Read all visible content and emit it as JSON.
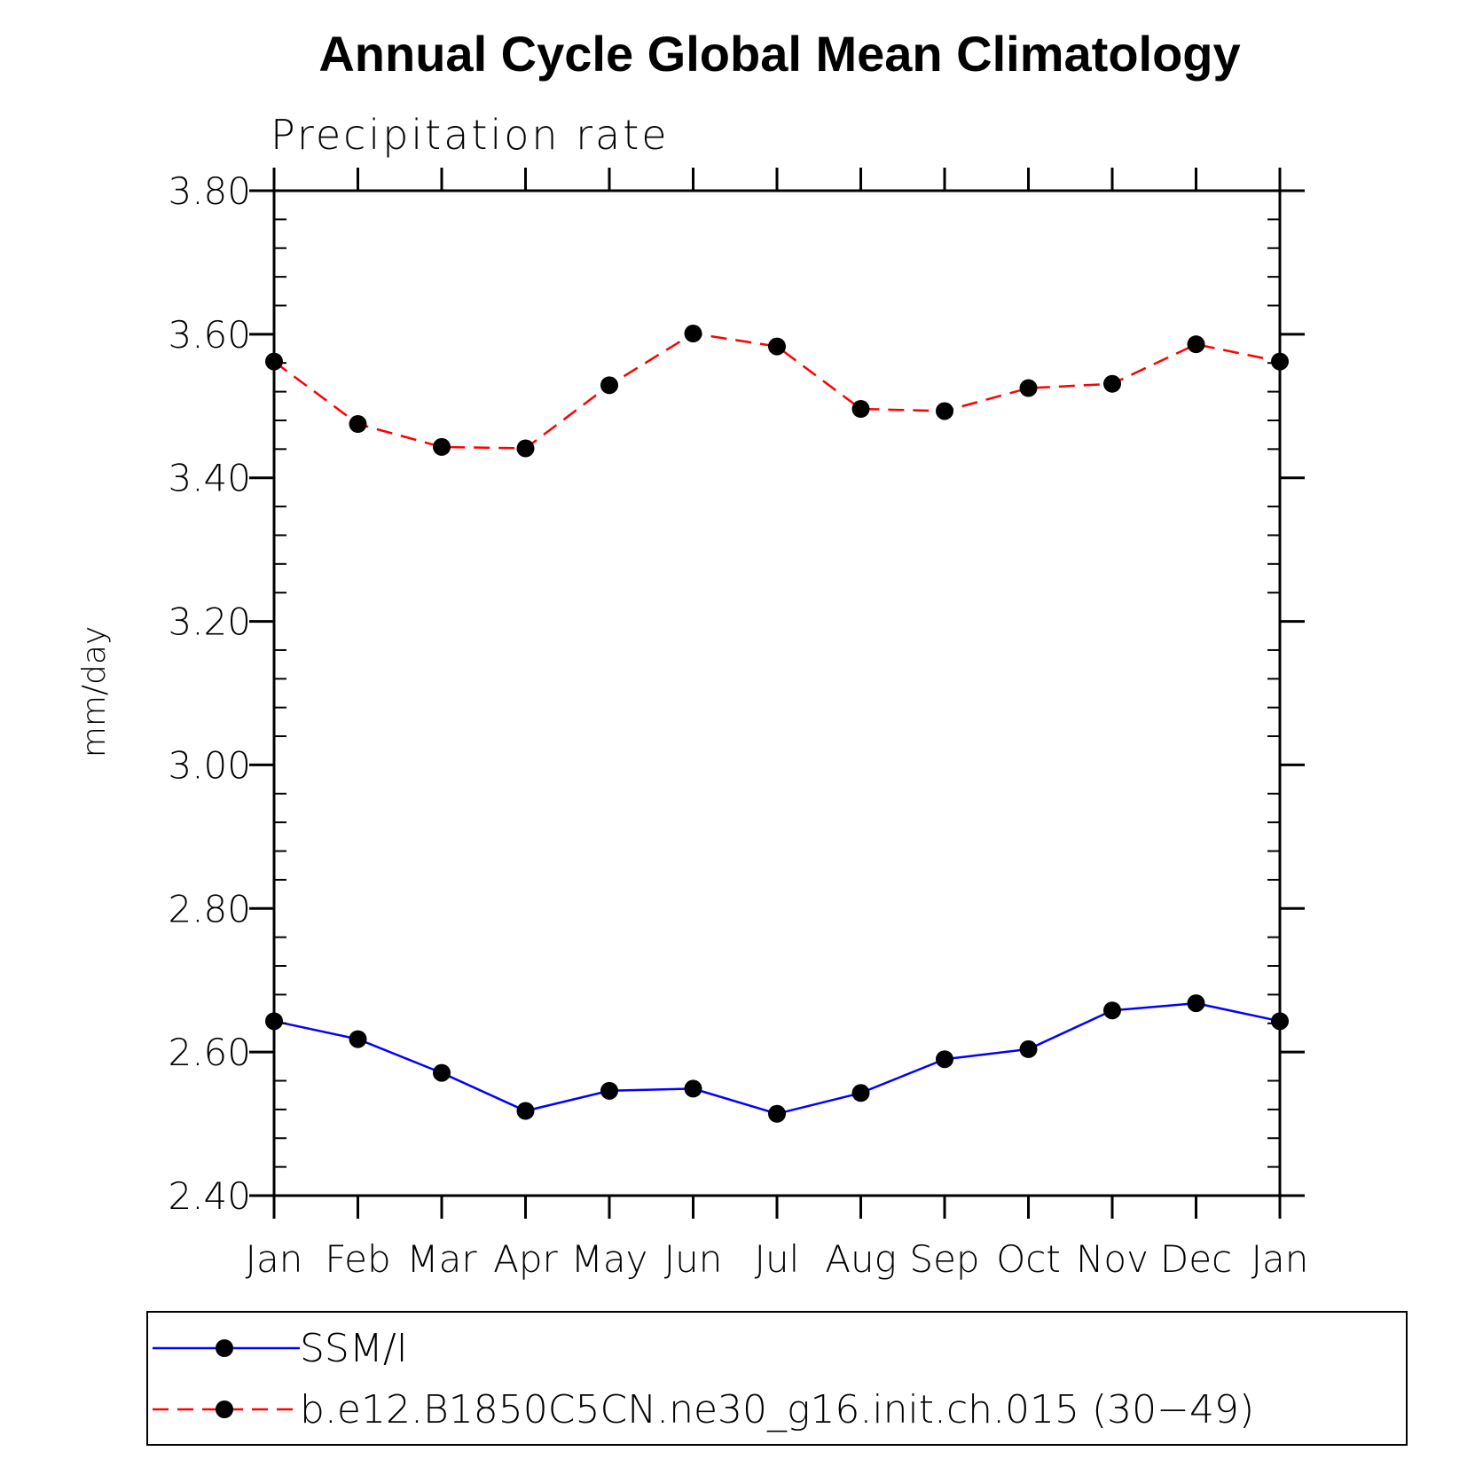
{
  "chart_data": {
    "type": "line",
    "title": "Annual Cycle Global Mean Climatology",
    "subtitle": "Precipitation rate",
    "xlabel": "",
    "ylabel": "mm/day",
    "categories": [
      "Jan",
      "Feb",
      "Mar",
      "Apr",
      "May",
      "Jun",
      "Jul",
      "Aug",
      "Sep",
      "Oct",
      "Nov",
      "Dec",
      "Jan"
    ],
    "ylim": [
      2.4,
      3.8
    ],
    "yticks": [
      "2.40",
      "2.60",
      "2.80",
      "3.00",
      "3.20",
      "3.40",
      "3.60",
      "3.80"
    ],
    "ytick_values": [
      2.4,
      2.6,
      2.8,
      3.0,
      3.2,
      3.4,
      3.6,
      3.8
    ],
    "grid": false,
    "legend_position": "bottom",
    "series": [
      {
        "name": "SSM/I",
        "color": "#0000ff",
        "dash": "solid",
        "values": [
          2.643,
          2.618,
          2.571,
          2.518,
          2.546,
          2.549,
          2.514,
          2.543,
          2.59,
          2.604,
          2.658,
          2.668,
          2.643
        ]
      },
      {
        "name": "b.e12.B1850C5CN.ne30_g16.init.ch.015 (30−49)",
        "color": "#ff0000",
        "dash": "dashed",
        "values": [
          3.562,
          3.475,
          3.443,
          3.441,
          3.529,
          3.601,
          3.583,
          3.496,
          3.493,
          3.525,
          3.531,
          3.586,
          3.562
        ]
      }
    ]
  }
}
